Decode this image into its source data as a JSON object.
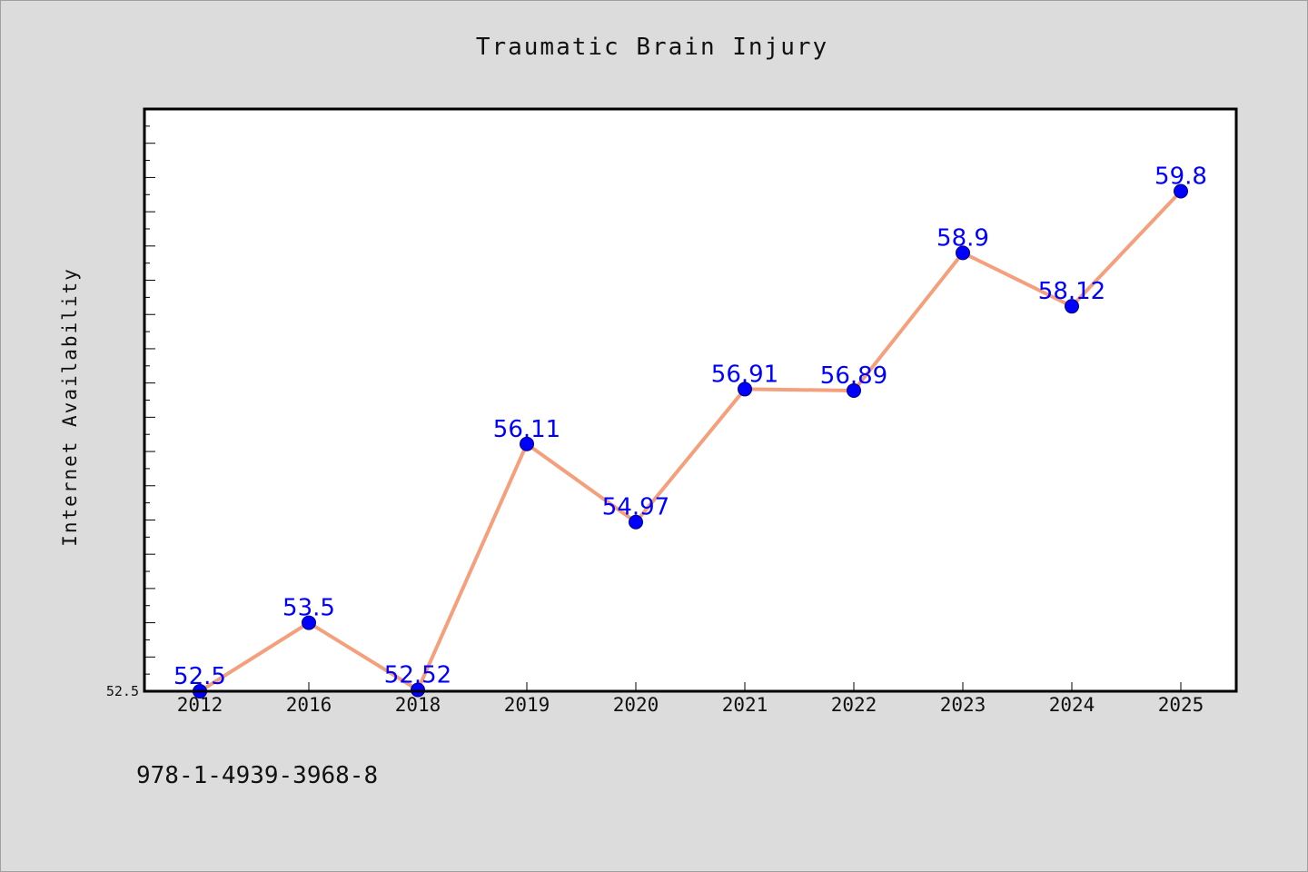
{
  "chart_data": {
    "type": "line",
    "title": "Traumatic Brain Injury",
    "xlabel": "",
    "ylabel": "Internet Availability",
    "categories": [
      "2012",
      "2016",
      "2018",
      "2019",
      "2020",
      "2021",
      "2022",
      "2023",
      "2024",
      "2025"
    ],
    "series": [
      {
        "values": [
          52.5,
          53.5,
          52.52,
          56.11,
          54.97,
          56.91,
          56.89,
          58.9,
          58.12,
          59.8
        ],
        "labels": [
          "52.5",
          "53.5",
          "52.52",
          "56.11",
          "54.97",
          "56.91",
          "56.89",
          "58.9",
          "58.12",
          "59.8"
        ]
      }
    ],
    "ylim": [
      52.5,
      61.0
    ],
    "yticks": [
      "52.5"
    ],
    "grid": false,
    "legend": "none",
    "colors": {
      "line": "#f4a07c",
      "marker": "#0000ff",
      "data_label": "#0000ff",
      "background": "#dcdcdc",
      "plot_background": "#ffffff"
    }
  },
  "footer": {
    "isbn": "978-1-4939-3968-8"
  }
}
